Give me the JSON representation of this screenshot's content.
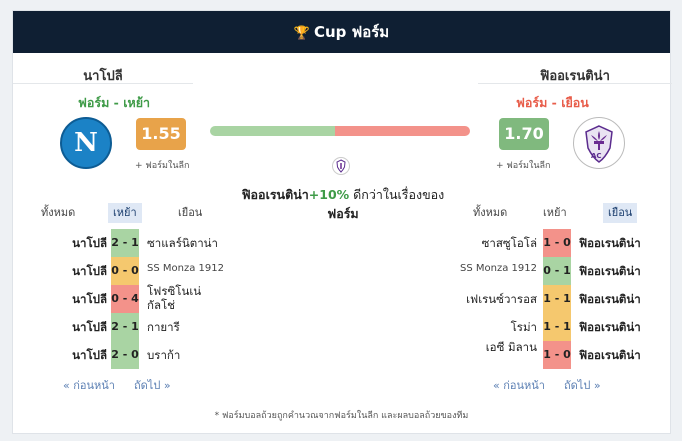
{
  "header": {
    "title": "Cup ฟอร์ม"
  },
  "home": {
    "name": "นาโปลี",
    "form_type": "ฟอร์ม - เหย้า",
    "rating": "1.55",
    "in_league": "+ ฟอร์มในลีก",
    "logo_letter": "N",
    "tabs": [
      "ทั้งหมด",
      "เหย้า",
      "เยือน"
    ],
    "active_tab": 1,
    "matches": [
      {
        "team": "นาโปลี",
        "score": "2 - 1",
        "result": "w",
        "opponent": "ซาแลร์นิตาน่า"
      },
      {
        "team": "นาโปลี",
        "score": "0 - 0",
        "result": "d",
        "opponent": "SS Monza 1912"
      },
      {
        "team": "นาโปลี",
        "score": "0 - 4",
        "result": "l",
        "opponent": "โฟรซิโนเน่ กัลโช่"
      },
      {
        "team": "นาโปลี",
        "score": "2 - 1",
        "result": "w",
        "opponent": "กายารี"
      },
      {
        "team": "นาโปลี",
        "score": "2 - 0",
        "result": "w",
        "opponent": "บราก้า"
      }
    ],
    "prev": "« ก่อนหน้า",
    "next": "ถัดไป »"
  },
  "away": {
    "name": "ฟิออเรนติน่า",
    "form_type": "ฟอร์ม - เยือน",
    "rating": "1.70",
    "in_league": "+ ฟอร์มในลีก",
    "logo_text": "AC",
    "tabs": [
      "ทั้งหมด",
      "เหย้า",
      "เยือน"
    ],
    "active_tab": 2,
    "matches": [
      {
        "opponent": "ซาสซูโอโล่",
        "score": "1 - 0",
        "result": "l",
        "team": "ฟิออเรนติน่า"
      },
      {
        "opponent": "SS Monza 1912",
        "score": "0 - 1",
        "result": "w",
        "team": "ฟิออเรนติน่า"
      },
      {
        "opponent": "เฟเรนซ์วารอส",
        "score": "1 - 1",
        "result": "d",
        "team": "ฟิออเรนติน่า"
      },
      {
        "opponent": "โรม่า",
        "score": "1 - 1",
        "result": "d",
        "team": "ฟิออเรนติน่า"
      },
      {
        "opponent": "เอซี มิลาน",
        "score": "1 - 0",
        "result": "l",
        "team": "ฟิออเรนติน่า"
      }
    ],
    "prev": "« ก่อนหน้า",
    "next": "ถัดไป »"
  },
  "comparison": {
    "home_share": 0.48,
    "team": "ฟิออเรนติน่า",
    "pct": "+10%",
    "text": " ดีกว่าในเรื่องของ",
    "line2": "ฟอร์ม"
  },
  "footnote": "* ฟอร์มบอลถ้วยถูกคำนวณจากฟอร์มในลีก และผลบอลถ้วยของทีม",
  "colors": {
    "header_bg": "#0f1f33",
    "win": "#a9d4a3",
    "draw": "#f5c86e",
    "loss": "#f3928a",
    "home_badge": "#e8a34a",
    "away_badge": "#80b97e",
    "home_form": "#3f9b48",
    "away_form": "#e85d4a"
  }
}
